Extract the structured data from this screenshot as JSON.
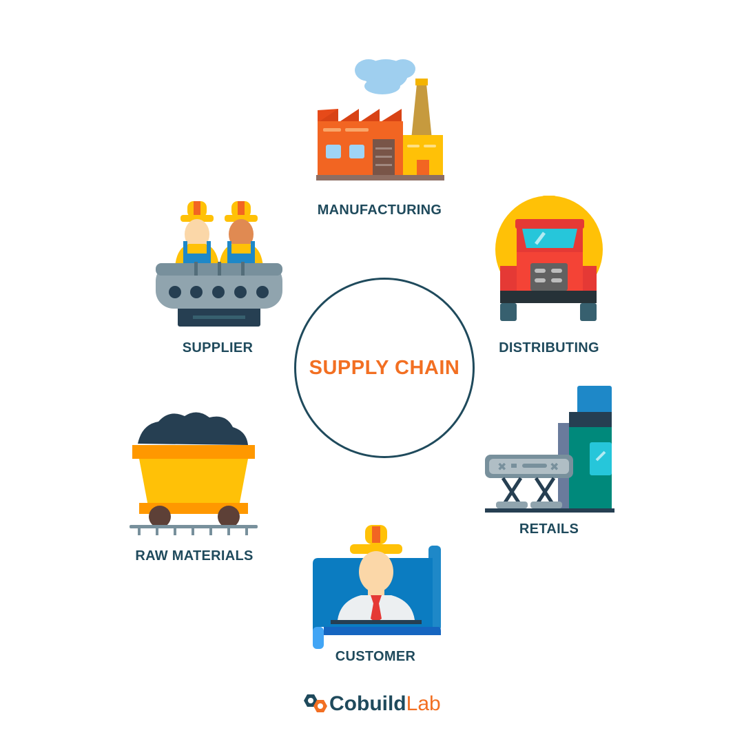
{
  "center": {
    "title": "SUPPLY CHAIN"
  },
  "stages": {
    "manufacturing": "MANUFACTURING",
    "distributing": "DISTRIBUTING",
    "retails": "RETAILS",
    "customer": "CUSTOMER",
    "raw_materials": "RAW MATERIALS",
    "supplier": "SUPPLIER"
  },
  "logo": {
    "word1": "Cobuild",
    "word2": "Lab"
  },
  "colors": {
    "label": "#1f4a5c",
    "accent": "#f26f22",
    "circle_border": "#1f4a5c",
    "yellow": "#ffc107",
    "red": "#e53935",
    "blue": "#1e88c8"
  },
  "icons": {
    "manufacturing": "factory-icon",
    "distributing": "tanker-truck-icon",
    "retails": "conveyor-machine-icon",
    "customer": "engineer-blueprint-icon",
    "raw_materials": "coal-mine-cart-icon",
    "supplier": "workers-conveyor-icon"
  }
}
